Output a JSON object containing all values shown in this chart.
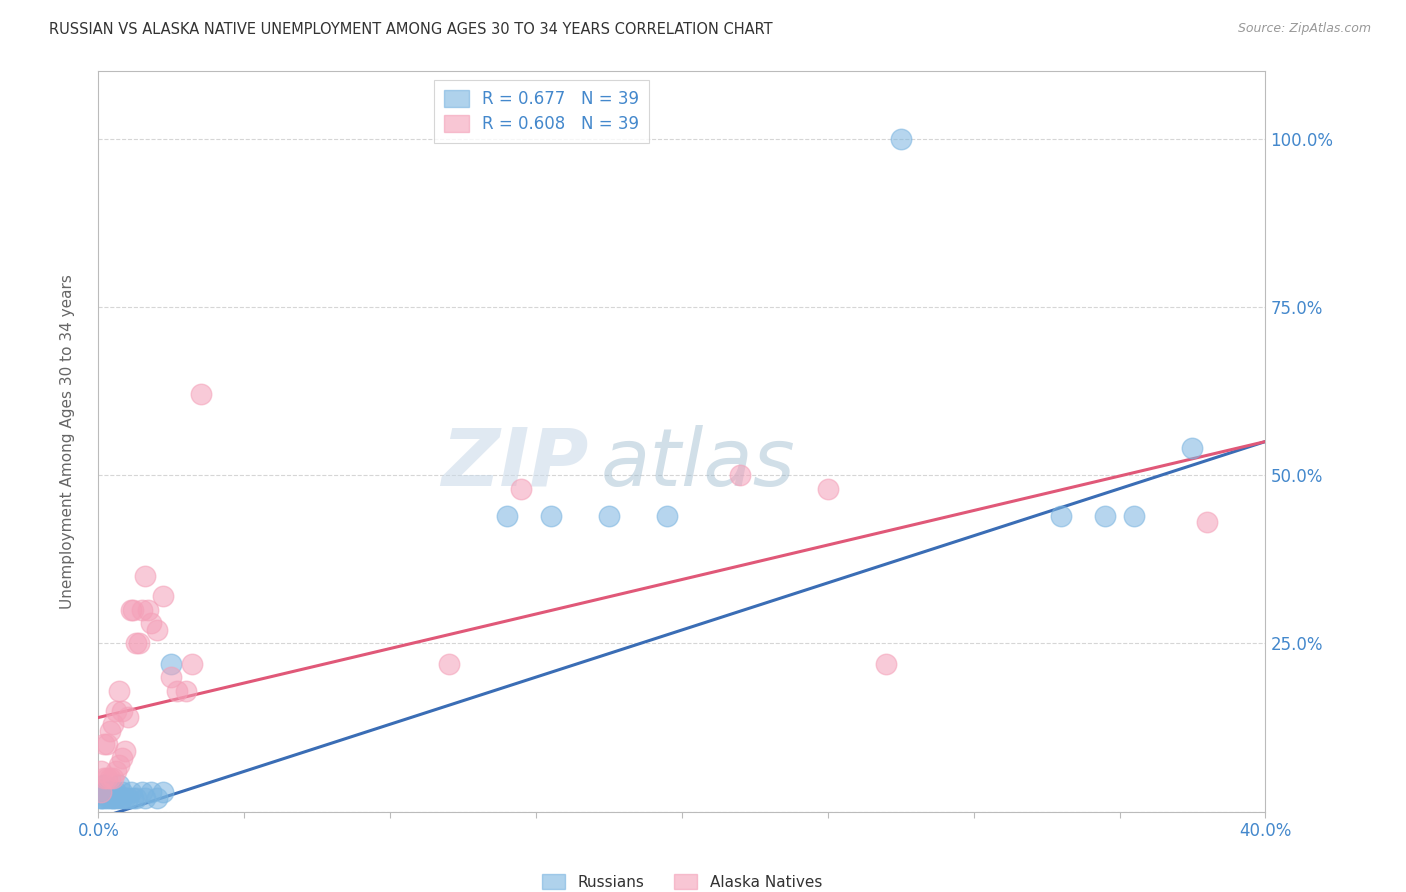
{
  "title": "RUSSIAN VS ALASKA NATIVE UNEMPLOYMENT AMONG AGES 30 TO 34 YEARS CORRELATION CHART",
  "source": "Source: ZipAtlas.com",
  "ylabel": "Unemployment Among Ages 30 to 34 years",
  "xlim": [
    0.0,
    0.4
  ],
  "ylim": [
    0.0,
    1.1
  ],
  "y_ticks": [
    0.0,
    0.25,
    0.5,
    0.75,
    1.0
  ],
  "y_tick_labels": [
    "",
    "25.0%",
    "50.0%",
    "75.0%",
    "100.0%"
  ],
  "legend_label_russian": "R = 0.677   N = 39",
  "legend_label_alaska": "R = 0.608   N = 39",
  "bottom_legend_russian": "Russians",
  "bottom_legend_alaska": "Alaska Natives",
  "watermark": "ZIPatlas",
  "russians_color": "#7ab4e0",
  "alaska_color": "#f4a0b8",
  "russian_line_color": "#3a6db5",
  "alaska_line_color": "#e05878",
  "background_color": "#ffffff",
  "grid_color": "#cccccc",
  "axis_color": "#bbbbbb",
  "tick_label_color": "#4488cc",
  "title_color": "#333333",
  "source_color": "#999999",
  "russians_x": [
    0.001,
    0.001,
    0.001,
    0.002,
    0.002,
    0.002,
    0.003,
    0.003,
    0.004,
    0.004,
    0.005,
    0.005,
    0.005,
    0.006,
    0.006,
    0.007,
    0.007,
    0.008,
    0.008,
    0.009,
    0.01,
    0.011,
    0.012,
    0.013,
    0.015,
    0.016,
    0.018,
    0.02,
    0.022,
    0.025,
    0.14,
    0.155,
    0.175,
    0.195,
    0.275,
    0.33,
    0.345,
    0.355,
    0.375
  ],
  "russians_y": [
    0.02,
    0.02,
    0.03,
    0.02,
    0.03,
    0.04,
    0.02,
    0.03,
    0.02,
    0.03,
    0.02,
    0.02,
    0.03,
    0.02,
    0.03,
    0.02,
    0.04,
    0.02,
    0.03,
    0.02,
    0.02,
    0.03,
    0.02,
    0.02,
    0.03,
    0.02,
    0.03,
    0.02,
    0.03,
    0.22,
    0.44,
    0.44,
    0.44,
    0.44,
    1.0,
    0.44,
    0.44,
    0.44,
    0.54
  ],
  "alaska_x": [
    0.001,
    0.001,
    0.002,
    0.002,
    0.003,
    0.003,
    0.004,
    0.004,
    0.005,
    0.005,
    0.006,
    0.006,
    0.007,
    0.007,
    0.008,
    0.008,
    0.009,
    0.01,
    0.011,
    0.012,
    0.013,
    0.014,
    0.015,
    0.016,
    0.017,
    0.018,
    0.02,
    0.022,
    0.025,
    0.027,
    0.03,
    0.032,
    0.035,
    0.12,
    0.145,
    0.22,
    0.25,
    0.27,
    0.38
  ],
  "alaska_y": [
    0.03,
    0.06,
    0.05,
    0.1,
    0.05,
    0.1,
    0.05,
    0.12,
    0.05,
    0.13,
    0.06,
    0.15,
    0.07,
    0.18,
    0.08,
    0.15,
    0.09,
    0.14,
    0.3,
    0.3,
    0.25,
    0.25,
    0.3,
    0.35,
    0.3,
    0.28,
    0.27,
    0.32,
    0.2,
    0.18,
    0.18,
    0.22,
    0.62,
    0.22,
    0.48,
    0.5,
    0.48,
    0.22,
    0.43
  ]
}
